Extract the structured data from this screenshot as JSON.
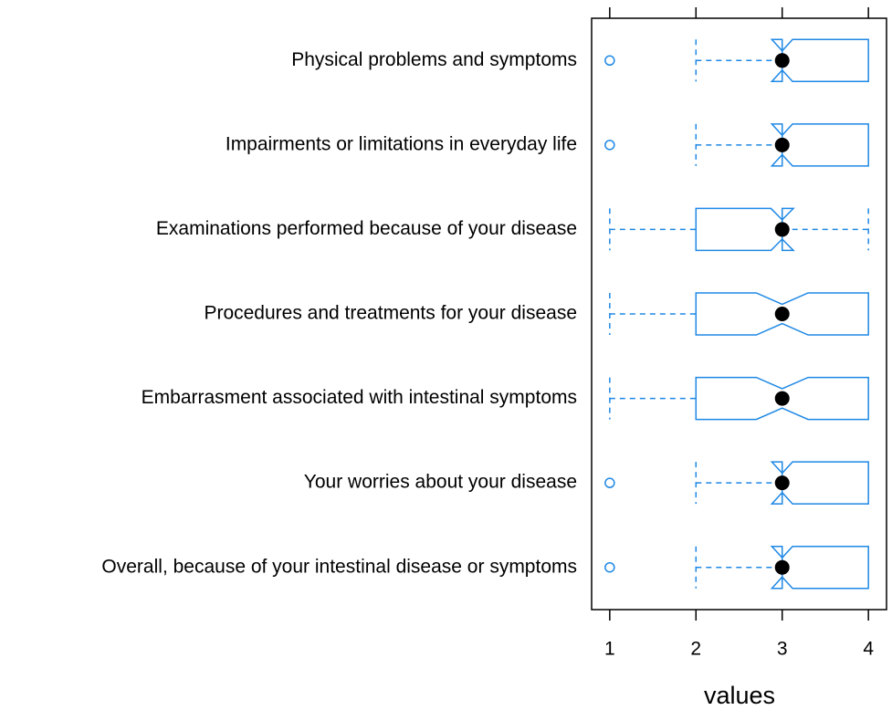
{
  "chart_data": {
    "type": "box",
    "orientation": "horizontal",
    "notch": true,
    "xlabel": "values",
    "categories": [
      "Physical problems and symptoms",
      "Impairments or limitations in everyday life",
      "Examinations performed because of  your disease",
      "Procedures and treatments for your disease",
      "Embarrasment associated with intestinal symptoms",
      "Your worries about your disease",
      "Overall, because of your intestinal disease or symptoms"
    ],
    "whislo": [
      2,
      2,
      1,
      1,
      1,
      2,
      2
    ],
    "q1": [
      3,
      3,
      2,
      2,
      2,
      3,
      3
    ],
    "med": [
      3,
      3,
      3,
      3,
      3,
      3,
      3
    ],
    "q3": [
      4,
      4,
      3,
      4,
      4,
      4,
      4
    ],
    "whishi": [
      4,
      4,
      4,
      4,
      4,
      4,
      4
    ],
    "notch_lo": [
      2.88,
      2.88,
      2.87,
      2.7,
      2.7,
      2.88,
      2.88
    ],
    "notch_hi": [
      3.12,
      3.12,
      3.13,
      3.3,
      3.3,
      3.12,
      3.12
    ],
    "outliers": [
      [
        1
      ],
      [
        1
      ],
      [],
      [],
      [],
      [
        1
      ],
      [
        1
      ]
    ],
    "color": "#1e88e5",
    "median_color": "#000000",
    "xlim": [
      0.79,
      4.21
    ],
    "xticks": [
      1,
      2,
      3,
      4
    ]
  }
}
